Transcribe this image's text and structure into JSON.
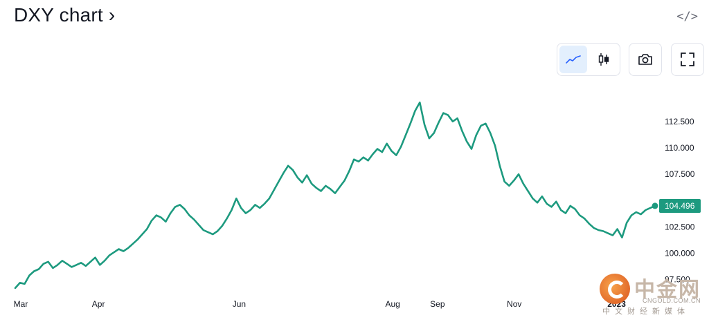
{
  "header": {
    "title": "DXY chart ›",
    "embed_icon": "</>"
  },
  "toolbar": {
    "line_chart_icon": "line-chart-icon",
    "candles_icon": "candlestick-icon",
    "snapshot_icon": "camera-icon",
    "fullscreen_icon": "fullscreen-icon"
  },
  "chart_data": {
    "type": "line",
    "title": "",
    "xlabel": "",
    "ylabel": "",
    "ylim": [
      96.5,
      115.5
    ],
    "y_ticks": [
      "112.500",
      "110.000",
      "107.500",
      "102.500",
      "100.000",
      "97.500"
    ],
    "x_ticks": [
      "Mar",
      "Apr",
      "Jun",
      "Aug",
      "Sep",
      "Nov",
      "2023"
    ],
    "last_value": "104.496",
    "line_color": "#1d9a7f",
    "series": [
      {
        "values": [
          96.7,
          97.2,
          97.1,
          97.9,
          98.3,
          98.5,
          99.0,
          99.2,
          98.6,
          98.9,
          99.3,
          99.0,
          98.7,
          98.9,
          99.1,
          98.8,
          99.2,
          99.6,
          98.9,
          99.3,
          99.8,
          100.1,
          100.4,
          100.2,
          100.5,
          100.9,
          101.3,
          101.8,
          102.3,
          103.1,
          103.6,
          103.4,
          103.0,
          103.8,
          104.4,
          104.6,
          104.2,
          103.6,
          103.2,
          102.7,
          102.2,
          102.0,
          101.8,
          102.1,
          102.6,
          103.3,
          104.1,
          105.2,
          104.3,
          103.8,
          104.1,
          104.6,
          104.3,
          104.7,
          105.2,
          106.0,
          106.8,
          107.6,
          108.3,
          107.9,
          107.2,
          106.7,
          107.4,
          106.6,
          106.2,
          105.9,
          106.4,
          106.1,
          105.7,
          106.3,
          106.9,
          107.8,
          108.9,
          108.7,
          109.1,
          108.8,
          109.4,
          109.9,
          109.6,
          110.4,
          109.7,
          109.3,
          110.1,
          111.2,
          112.3,
          113.5,
          114.3,
          112.2,
          110.9,
          111.4,
          112.4,
          113.3,
          113.1,
          112.5,
          112.8,
          111.6,
          110.6,
          109.9,
          111.2,
          112.1,
          112.3,
          111.4,
          110.2,
          108.3,
          106.8,
          106.4,
          106.9,
          107.5,
          106.6,
          105.9,
          105.2,
          104.8,
          105.4,
          104.7,
          104.4,
          104.9,
          104.1,
          103.8,
          104.5,
          104.2,
          103.6,
          103.3,
          102.8,
          102.4,
          102.2,
          102.1,
          101.9,
          101.7,
          102.3,
          101.5,
          102.9,
          103.6,
          103.9,
          103.7,
          104.1,
          104.3,
          104.5
        ]
      }
    ],
    "x_tick_positions": [
      0,
      0.13,
      0.35,
      0.59,
      0.66,
      0.78,
      0.94
    ]
  },
  "watermark": {
    "name": "中金网",
    "domain": "CNGOLD.COM.CN",
    "sub": "中文财经新媒体"
  }
}
